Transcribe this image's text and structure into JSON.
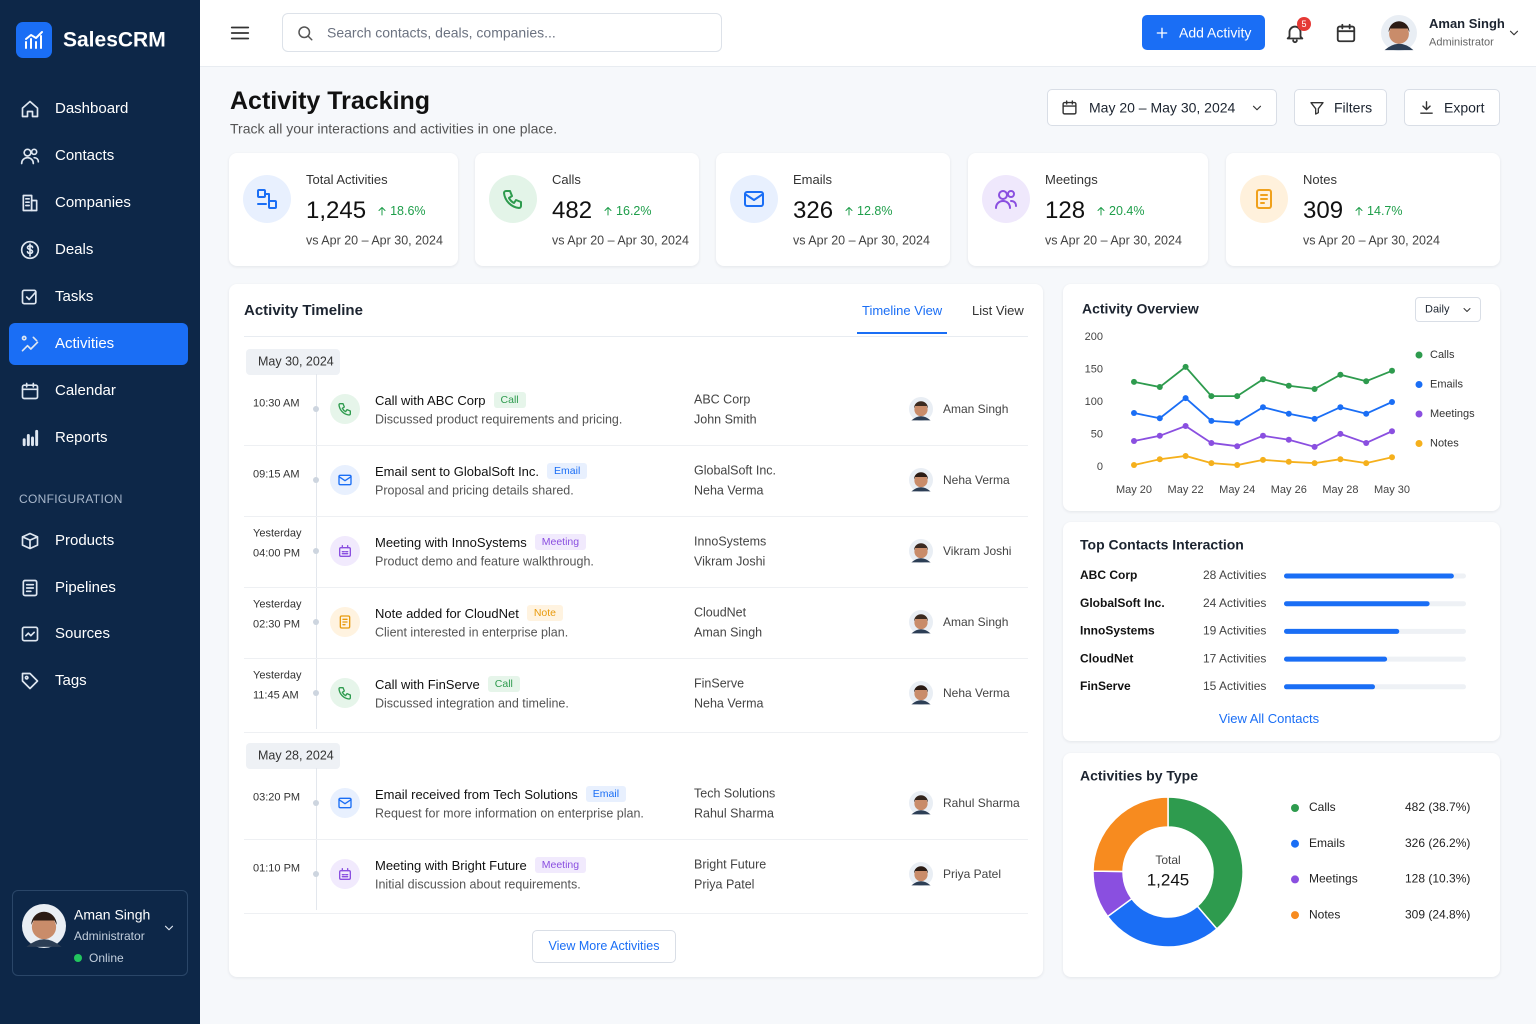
{
  "brand": "SalesCRM",
  "nav": [
    "Dashboard",
    "Contacts",
    "Companies",
    "Deals",
    "Tasks",
    "Activities",
    "Calendar",
    "Reports"
  ],
  "config_heading": "CONFIGURATION",
  "config_nav": [
    "Products",
    "Pipelines",
    "Sources",
    "Tags"
  ],
  "sidebar_user": {
    "name": "Aman Singh",
    "role": "Administrator",
    "status": "Online"
  },
  "search_placeholder": "Search contacts, deals, companies...",
  "add_button": "Add Activity",
  "notification_count": 5,
  "header_user": {
    "name": "Aman Singh",
    "role": "Administrator"
  },
  "page": {
    "title": "Activity Tracking",
    "subtitle": "Track all your interactions and activities in one place.",
    "date_range": "May 20 – May 30, 2024",
    "filters": "Filters",
    "export": "Export"
  },
  "kpis": [
    {
      "label": "Total Activities",
      "value": "1,245",
      "change": "18.6%",
      "comparison": "vs Apr 20 – Apr 30, 2024"
    },
    {
      "label": "Calls",
      "value": "482",
      "change": "16.2%",
      "comparison": "vs Apr 20 – Apr 30, 2024"
    },
    {
      "label": "Emails",
      "value": "326",
      "change": "12.8%",
      "comparison": "vs Apr 20 – Apr 30, 2024"
    },
    {
      "label": "Meetings",
      "value": "128",
      "change": "20.4%",
      "comparison": "vs Apr 20 – Apr 30, 2024"
    },
    {
      "label": "Notes",
      "value": "309",
      "change": "14.7%",
      "comparison": "vs Apr 20 – Apr 30, 2024"
    }
  ],
  "timeline": {
    "title": "Activity Timeline",
    "tabs": [
      "Timeline View",
      "List View"
    ],
    "groups": [
      {
        "date": "May 30, 2024",
        "items": [
          {
            "time": [
              "10:30 AM"
            ],
            "title": "Call with ABC Corp",
            "tag": "Call",
            "description": "Discussed product requirements and pricing.",
            "company": "ABC Corp",
            "contact": "John Smith",
            "owner": "Aman Singh"
          },
          {
            "time": [
              "09:15 AM"
            ],
            "title": "Email sent to GlobalSoft Inc.",
            "tag": "Email",
            "description": "Proposal and pricing details shared.",
            "company": "GlobalSoft Inc.",
            "contact": "Neha Verma",
            "owner": "Neha Verma"
          },
          {
            "time": [
              "Yesterday",
              "04:00 PM"
            ],
            "title": "Meeting with InnoSystems",
            "tag": "Meeting",
            "description": "Product demo and feature walkthrough.",
            "company": "InnoSystems",
            "contact": "Vikram Joshi",
            "owner": "Vikram Joshi"
          },
          {
            "time": [
              "Yesterday",
              "02:30 PM"
            ],
            "title": "Note added for CloudNet",
            "tag": "Note",
            "description": "Client interested in enterprise plan.",
            "company": "CloudNet",
            "contact": "Aman Singh",
            "owner": "Aman Singh"
          },
          {
            "time": [
              "Yesterday",
              "11:45 AM"
            ],
            "title": "Call with FinServe",
            "tag": "Call",
            "description": "Discussed integration and timeline.",
            "company": "FinServe",
            "contact": "Neha Verma",
            "owner": "Neha Verma"
          }
        ]
      },
      {
        "date": "May 28, 2024",
        "items": [
          {
            "time": [
              "03:20 PM"
            ],
            "title": "Email received from Tech Solutions",
            "tag": "Email",
            "description": "Request for more information on enterprise plan.",
            "company": "Tech Solutions",
            "contact": "Rahul Sharma",
            "owner": "Rahul Sharma"
          },
          {
            "time": [
              "01:10 PM"
            ],
            "title": "Meeting with Bright Future",
            "tag": "Meeting",
            "description": "Initial discussion about requirements.",
            "company": "Bright Future",
            "contact": "Priya Patel",
            "owner": "Priya Patel"
          }
        ]
      }
    ],
    "more": "View More Activities"
  },
  "top_contacts_link": "View All Contacts",
  "chart_data": [
    {
      "type": "line",
      "title": "Activity Overview",
      "period": "Daily",
      "categories": [
        "May 20",
        null,
        "May 22",
        null,
        "May 24",
        null,
        "May 26",
        null,
        "May 28",
        null,
        "May 30"
      ],
      "series": [
        {
          "name": "Calls",
          "color": "#2e9b4e",
          "values": [
            131,
            123,
            154,
            109,
            109,
            135,
            125,
            120,
            142,
            132,
            148
          ]
        },
        {
          "name": "Emails",
          "color": "#1a6ef5",
          "values": [
            83,
            75,
            106,
            71,
            68,
            92,
            82,
            74,
            92,
            82,
            100
          ]
        },
        {
          "name": "Meetings",
          "color": "#8a4fe0",
          "values": [
            40,
            48,
            63,
            37,
            32,
            48,
            42,
            31,
            51,
            37,
            55
          ]
        },
        {
          "name": "Notes",
          "color": "#f5b01c",
          "values": [
            3,
            12,
            17,
            6,
            3,
            11,
            8,
            6,
            12,
            6,
            15
          ]
        }
      ],
      "ylim": [
        0,
        200
      ],
      "yticks": [
        0,
        50,
        100,
        150,
        200
      ],
      "grid": false,
      "legend": "right"
    },
    {
      "type": "bar",
      "orientation": "horizontal",
      "title": "Top Contacts Interaction",
      "categories": [
        "ABC Corp",
        "GlobalSoft Inc.",
        "InnoSystems",
        "CloudNet",
        "FinServe"
      ],
      "values": [
        28,
        24,
        19,
        17,
        15
      ],
      "value_labels": [
        "28 Activities",
        "24 Activities",
        "19 Activities",
        "17 Activities",
        "15 Activities"
      ],
      "color": "#1a6ef5",
      "xlim": [
        0,
        30
      ]
    },
    {
      "type": "pie",
      "donut": true,
      "title": "Activities by Type",
      "center_label": "Total",
      "center_value": "1,245",
      "categories": [
        "Calls",
        "Emails",
        "Meetings",
        "Notes"
      ],
      "values": [
        482,
        326,
        128,
        309
      ],
      "value_labels": [
        "482 (38.7%)",
        "326 (26.2%)",
        "128 (10.3%)",
        "309 (24.8%)"
      ],
      "colors": [
        "#2e9b4e",
        "#1a6ef5",
        "#8a4fe0",
        "#f78b1f"
      ]
    }
  ]
}
